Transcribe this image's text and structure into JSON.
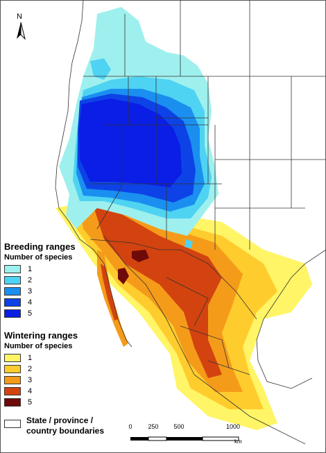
{
  "north_label": "N",
  "breeding": {
    "title": "Breeding ranges",
    "subtitle": "Number of species",
    "levels": [
      {
        "label": "1",
        "color": "#9ef0ee"
      },
      {
        "label": "2",
        "color": "#4fd3f2"
      },
      {
        "label": "3",
        "color": "#1a8ff0"
      },
      {
        "label": "4",
        "color": "#0d43e6"
      },
      {
        "label": "5",
        "color": "#0a1ee6"
      }
    ]
  },
  "wintering": {
    "title": "Wintering ranges",
    "subtitle": "Number of species",
    "levels": [
      {
        "label": "1",
        "color": "#fff566"
      },
      {
        "label": "2",
        "color": "#ffcc2e"
      },
      {
        "label": "3",
        "color": "#f59b1a"
      },
      {
        "label": "4",
        "color": "#d2430f"
      },
      {
        "label": "5",
        "color": "#6e0a0a"
      }
    ]
  },
  "boundaries_label_line1": "State / province /",
  "boundaries_label_line2": "country boundaries",
  "scale": {
    "ticks": [
      "0",
      "250",
      "500",
      "1000"
    ],
    "unit": "km"
  }
}
